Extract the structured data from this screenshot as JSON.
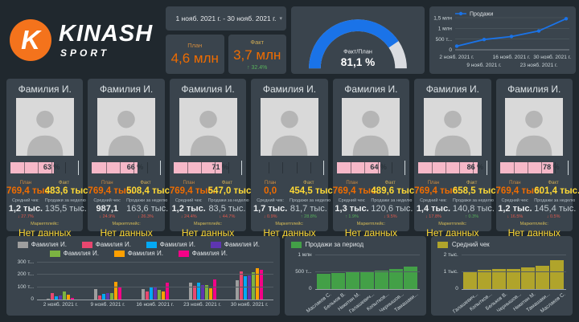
{
  "brand": {
    "title": "KINASH",
    "subtitle": "SPORT",
    "logo_letter": "K"
  },
  "icons": {
    "dropdown": "▾"
  },
  "colors": {
    "accent_orange": "#ef6c00",
    "accent_yellow": "#fdd835",
    "positive": "#58b15c",
    "negative": "#e05a4e",
    "bar_pink": "#f6b8c8",
    "gauge_blue": "#1a73e8",
    "gauge_track": "#dadce0",
    "logo_orange": "#f4731c"
  },
  "header": {
    "date_range": "1 нояб. 2021 г. - 30 нояб. 2021 г.",
    "plan": {
      "label": "План",
      "value": "4,6 млн"
    },
    "fact": {
      "label": "Факт",
      "value": "3,7 млн",
      "delta": "↑ 32.4%"
    }
  },
  "cards": [
    {
      "name": "Фамилия И.",
      "percent": "63 %",
      "pct": 63,
      "plan_label": "План",
      "plan_value": "769,4 тыс.",
      "fact_label": "Факт",
      "fact_value": "483,6 тыс.",
      "avg_label": "Средний чек:",
      "avg_value": "1,2 тыс.",
      "avg_delta": "↓ 27.7%",
      "avg_dir": "down",
      "week_label": "Продажи за неделю",
      "week_value": "135,5 тыс.",
      "week_delta": "",
      "week_dir": "",
      "market_label": "Маркетплейс:",
      "market_value": "Нет данных"
    },
    {
      "name": "Фамилия И.",
      "percent": "66 %",
      "pct": 66,
      "plan_label": "План",
      "plan_value": "769,4 тыс.",
      "fact_label": "Факт",
      "fact_value": "508,4 тыс.",
      "avg_label": "Средний чек:",
      "avg_value": "987,1",
      "avg_delta": "↓ 24.9%",
      "avg_dir": "down",
      "week_label": "Продажи за неделю",
      "week_value": "163,6 тыс.",
      "week_delta": "↓ 26.3%",
      "week_dir": "down",
      "market_label": "Маркетплейс:",
      "market_value": "Нет данных"
    },
    {
      "name": "Фамилия И.",
      "percent": "71 %",
      "pct": 71,
      "plan_label": "План",
      "plan_value": "769,4 тыс.",
      "fact_label": "Факт",
      "fact_value": "547,0 тыс.",
      "avg_label": "Средний чек:",
      "avg_value": "1,2 тыс.",
      "avg_delta": "↓ 24.4%",
      "avg_dir": "down",
      "week_label": "Продажи за неделю",
      "week_value": "83,5 тыс.",
      "week_delta": "↓ 44.7%",
      "week_dir": "down",
      "market_label": "Маркетплейс:",
      "market_value": "Нет данных"
    },
    {
      "name": "Фамилия И.",
      "percent": "",
      "pct": 0,
      "plan_label": "План",
      "plan_value": "0,0",
      "fact_label": "Факт",
      "fact_value": "454,5 тыс.",
      "avg_label": "Средний чек:",
      "avg_value": "1,7 тыс.",
      "avg_delta": "↓ 0.9%",
      "avg_dir": "down",
      "week_label": "Продажи за неделю",
      "week_value": "81,7 тыс.",
      "week_delta": "↑ 28.8%",
      "week_dir": "up",
      "market_label": "Маркетплейс:",
      "market_value": "Нет данных"
    },
    {
      "name": "Фамилия И.",
      "percent": "64 %",
      "pct": 64,
      "plan_label": "План",
      "plan_value": "769,4 тыс.",
      "fact_label": "Факт",
      "fact_value": "489,6 тыс.",
      "avg_label": "Средний чек:",
      "avg_value": "1,3 тыс.",
      "avg_delta": "↑ 1.9%",
      "avg_dir": "up",
      "week_label": "Продажи за неделю",
      "week_value": "120,6 тыс.",
      "week_delta": "↓ 9.5%",
      "week_dir": "down",
      "market_label": "Маркетплейс:",
      "market_value": "Нет данных"
    },
    {
      "name": "Фамилия И.",
      "percent": "86 %",
      "pct": 86,
      "plan_label": "План",
      "plan_value": "769,4 тыс.",
      "fact_label": "Факт",
      "fact_value": "658,5 тыс.",
      "avg_label": "Средний чек:",
      "avg_value": "1,4 тыс.",
      "avg_delta": "↓ 17.8%",
      "avg_dir": "down",
      "week_label": "Продажи за неделю",
      "week_value": "140,8 тыс.",
      "week_delta": "↑ 0.3%",
      "week_dir": "up",
      "market_label": "Маркетплейс:",
      "market_value": "Нет данных"
    },
    {
      "name": "Фамилия И.",
      "percent": "78 %",
      "pct": 78,
      "plan_label": "План",
      "plan_value": "769,4 тыс.",
      "fact_label": "Факт",
      "fact_value": "601,4 тыс.",
      "avg_label": "Средний чек:",
      "avg_value": "1,2 тыс.",
      "avg_delta": "↓ 16.5%",
      "avg_dir": "down",
      "week_label": "Продажи за неделю",
      "week_value": "145,4 тыс.",
      "week_delta": "↓ 0.5%",
      "week_dir": "down",
      "market_label": "Маркетплейс:",
      "market_value": "Нет данных"
    }
  ],
  "chart_data": {
    "gauge": {
      "type": "gauge",
      "label": "Факт/План",
      "value_display": "81,1 %",
      "value_pct": 81.1,
      "color": "#1a73e8",
      "track_color": "#dadce0"
    },
    "sales_line": {
      "type": "line",
      "legend": "Продажи",
      "color": "#1a73e8",
      "x": [
        "2 нояб. 2021 г.",
        "9 нояб. 2021 г.",
        "16 нояб. 2021 г.",
        "23 нояб. 2021 г.",
        "30 нояб. 2021 г."
      ],
      "values_thousands": [
        170,
        480,
        620,
        880,
        1450
      ],
      "ylim": [
        0,
        1500
      ],
      "yticks": [
        "0",
        "500 т...",
        "1 млн",
        "1,5 млн"
      ],
      "grid": true,
      "legend_position": "top-left"
    },
    "sales_by_person_daily": {
      "type": "bar",
      "categories": [
        "2 нояб. 2021 г.",
        "9 нояб. 2021 г.",
        "16 нояб. 2021 г.",
        "23 нояб. 2021 г.",
        "30 нояб. 2021 г."
      ],
      "ylim": [
        0,
        300
      ],
      "yticks": [
        "0",
        "100 т...",
        "200 т...",
        "300 т..."
      ],
      "grid": true,
      "legend_position": "top",
      "series": [
        {
          "name": "Фамилия И.",
          "color": "#9e9e9e",
          "values": [
            5,
            85,
            85,
            140,
            155
          ]
        },
        {
          "name": "Фамилия И.",
          "color": "#e8476f",
          "values": [
            50,
            30,
            65,
            110,
            230
          ]
        },
        {
          "name": "Фамилия И.",
          "color": "#03a9f4",
          "values": [
            28,
            45,
            95,
            135,
            190
          ]
        },
        {
          "name": "Фамилия И.",
          "color": "#5e35b1",
          "values": [
            35,
            50,
            105,
            120,
            195
          ]
        },
        {
          "name": "Фамилия И.",
          "color": "#7cb342",
          "values": [
            63,
            55,
            80,
            118,
            220
          ]
        },
        {
          "name": "Фамилия И.",
          "color": "#ffa000",
          "values": [
            40,
            145,
            65,
            90,
            255
          ]
        },
        {
          "name": "Фамилия И.",
          "color": "#f50087",
          "values": [
            12,
            105,
            135,
            165,
            240
          ]
        }
      ]
    },
    "sales_period": {
      "type": "bar",
      "legend": "Продажи за период",
      "color": "#43a047",
      "categories": [
        "Маслаков С.",
        "Бельков В.",
        "Никитин М.",
        "Галашевич...",
        "Копытков...",
        "Чернышов...",
        "Тамашаки..."
      ],
      "values_thousands": [
        455,
        484,
        490,
        508,
        547,
        601,
        658
      ],
      "ylim": [
        0,
        1000
      ],
      "yticks": [
        "0",
        "500 т...",
        "1 млн"
      ],
      "grid": true,
      "legend_position": "top-left"
    },
    "avg_check": {
      "type": "bar",
      "legend": "Средний чек",
      "color": "#b0a42b",
      "categories": [
        "Галашевич...",
        "Копытков...",
        "Бельков В.",
        "Чернышов...",
        "Никитин М.",
        "Тамашаки...",
        "Маслаков С."
      ],
      "values_thousands": [
        1.0,
        1.15,
        1.2,
        1.2,
        1.3,
        1.4,
        1.7
      ],
      "ylim": [
        0,
        2
      ],
      "yticks": [
        "0",
        "1 тыс.",
        "2 тыс."
      ],
      "grid": true,
      "legend_position": "top-left"
    }
  }
}
